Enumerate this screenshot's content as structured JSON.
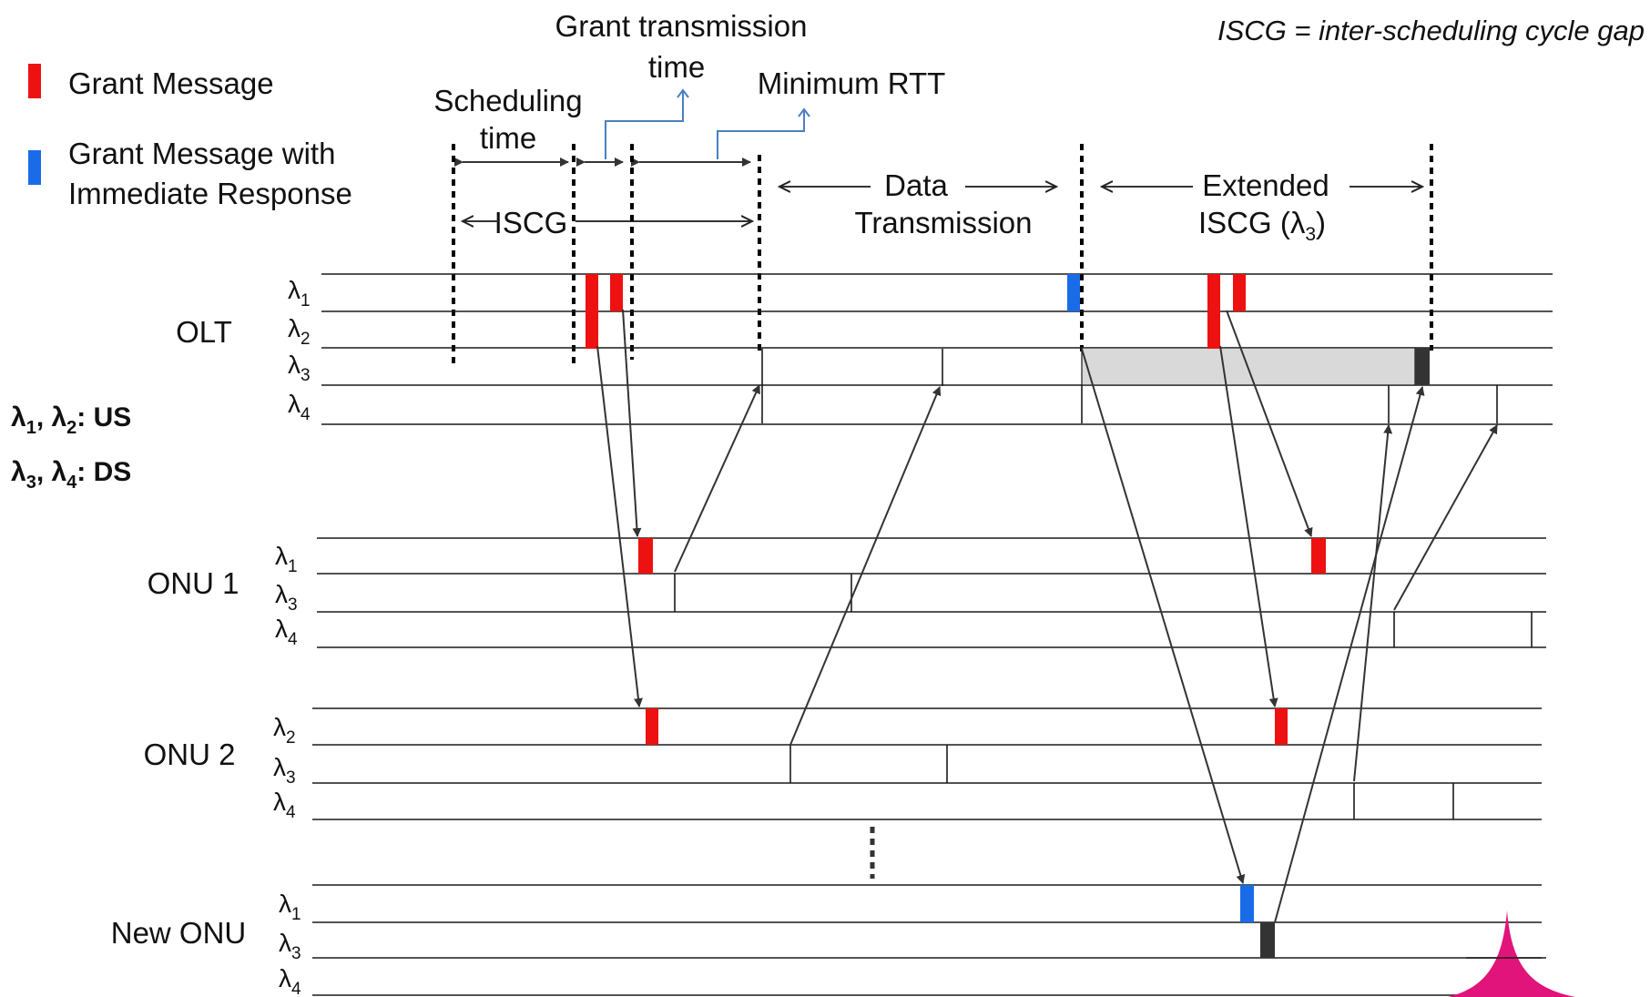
{
  "note": "ISCG = inter-scheduling cycle gap",
  "legend": {
    "grant": "Grant Message",
    "grant_immediate_line1": "Grant Message with",
    "grant_immediate_line2": "Immediate Response"
  },
  "colors": {
    "grant": "#ee1111",
    "immediate": "#1a6be8",
    "black_block": "#333333",
    "gray_fill": "#d9d9d9",
    "callout": "#4a7fc1",
    "logo": "#e0147a"
  },
  "labels": {
    "scheduling_time_1": "Scheduling",
    "scheduling_time_2": "time",
    "grant_tx_1": "Grant transmission",
    "grant_tx_2": "time",
    "min_rtt": "Minimum RTT",
    "iscg": "ISCG",
    "data_1": "Data",
    "data_2": "Transmission",
    "ext_1": "Extended",
    "ext_2": "ISCG (λ",
    "ext_sub": "3",
    "ext_close": ")"
  },
  "key": {
    "us_text": "λ",
    "us_sub1": "1",
    "us_mid": ", λ",
    "us_sub2": "2",
    "us_tail": ": US",
    "ds_sub1": "3",
    "ds_sub2": "4",
    "ds_tail": ": DS"
  },
  "devices": {
    "olt": "OLT",
    "onu1": "ONU 1",
    "onu2": "ONU 2",
    "new_onu": "New ONU"
  },
  "lambda": "λ",
  "subs": {
    "s1": "1",
    "s2": "2",
    "s3": "3",
    "s4": "4"
  }
}
